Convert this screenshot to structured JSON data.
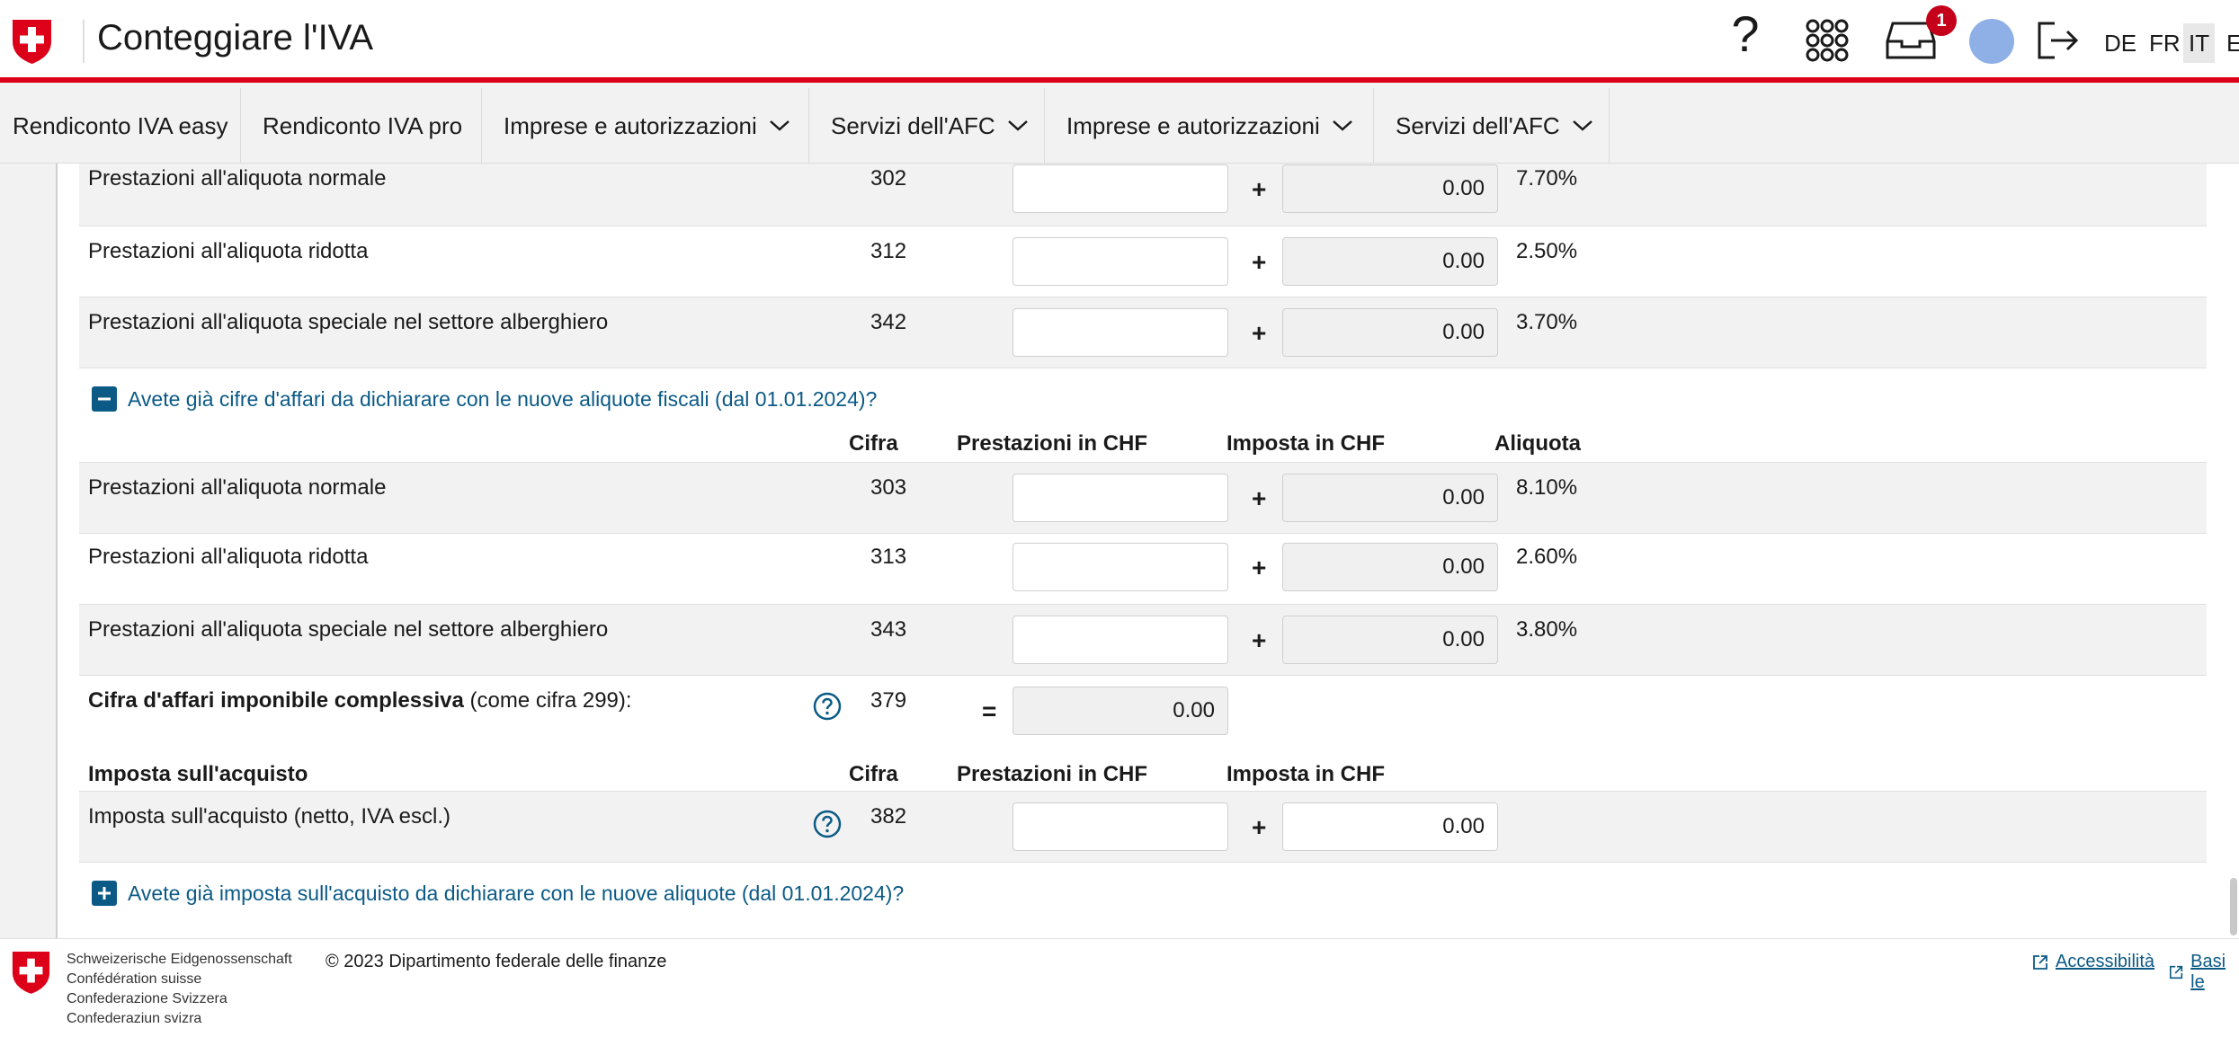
{
  "header": {
    "title": "Conteggiare l'IVA",
    "help_glyph": "?",
    "inbox_badge": "1",
    "languages": [
      "DE",
      "FR",
      "IT",
      "E"
    ],
    "active_language": "IT"
  },
  "nav": {
    "items": [
      {
        "label": "Rendiconto IVA easy",
        "dropdown": false
      },
      {
        "label": "Rendiconto IVA pro",
        "dropdown": false
      },
      {
        "label": "Imprese e autorizzazioni",
        "dropdown": true
      },
      {
        "label": "Servizi dell'AFC",
        "dropdown": true
      },
      {
        "label": "Imprese e autorizzazioni",
        "dropdown": true
      },
      {
        "label": "Servizi dell'AFC",
        "dropdown": true
      }
    ]
  },
  "form": {
    "old_rates": [
      {
        "label": "Prestazioni all'aliquota normale",
        "code": "302",
        "prestazioni": "",
        "imposta": "0.00",
        "rate": "7.70%"
      },
      {
        "label": "Prestazioni all'aliquota ridotta",
        "code": "312",
        "prestazioni": "",
        "imposta": "0.00",
        "rate": "2.50%"
      },
      {
        "label": "Prestazioni all'aliquota speciale nel settore alberghiero",
        "code": "342",
        "prestazioni": "",
        "imposta": "0.00",
        "rate": "3.70%"
      }
    ],
    "new_rates_toggle": "Avete già cifre d'affari da dichiarare con le nuove aliquote fiscali (dal 01.01.2024)?",
    "columns": {
      "cifra": "Cifra",
      "prestazioni": "Prestazioni in CHF",
      "imposta": "Imposta in CHF",
      "aliquota": "Aliquota"
    },
    "new_rates": [
      {
        "label": "Prestazioni all'aliquota normale",
        "code": "303",
        "prestazioni": "",
        "imposta": "0.00",
        "rate": "8.10%"
      },
      {
        "label": "Prestazioni all'aliquota ridotta",
        "code": "313",
        "prestazioni": "",
        "imposta": "0.00",
        "rate": "2.60%"
      },
      {
        "label": "Prestazioni all'aliquota speciale nel settore alberghiero",
        "code": "343",
        "prestazioni": "",
        "imposta": "0.00",
        "rate": "3.80%"
      }
    ],
    "total": {
      "label_bold": "Cifra d'affari imponibile complessiva",
      "label_rest": " (come cifra 299):",
      "code": "379",
      "op": "=",
      "value": "0.00"
    },
    "acquisto_section": {
      "title": "Imposta sull'acquisto"
    },
    "acquisto": {
      "label": "Imposta sull'acquisto (netto, IVA escl.)",
      "code": "382",
      "prestazioni": "",
      "imposta": "0.00"
    },
    "acquisto_toggle": "Avete già imposta sull'acquisto da dichiarare con le nuove aliquote (dal 01.01.2024)?",
    "plus": "+"
  },
  "footer": {
    "federation": [
      "Schweizerische Eidgenossenschaft",
      "Confédération suisse",
      "Confederazione Svizzera",
      "Confederaziun svizra"
    ],
    "copyright": "© 2023 Dipartimento federale delle finanze",
    "links": [
      "Accessibilità",
      "Basi le"
    ]
  },
  "colors": {
    "brand_red": "#dc0018",
    "link_blue": "#0b5a86",
    "badge_red": "#c4001a"
  }
}
